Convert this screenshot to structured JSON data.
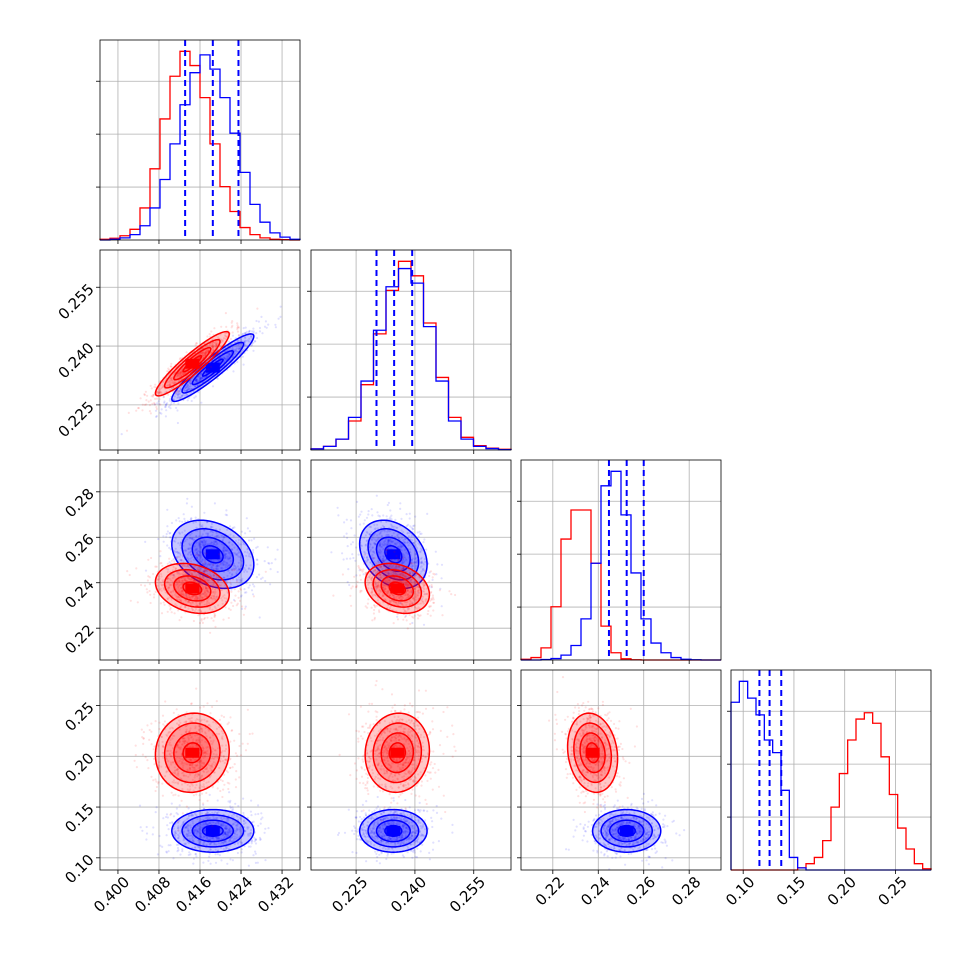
{
  "chart_data": {
    "type": "corner",
    "title": "",
    "grid": true,
    "colors": {
      "series_a": "#ff0000",
      "series_b": "#0000ff"
    },
    "parameters": [
      {
        "index": 0,
        "range": [
          0.3965,
          0.4355
        ],
        "ticks": [
          0.4,
          0.408,
          0.416,
          0.424,
          0.432
        ],
        "tick_labels": [
          "0.400",
          "0.408",
          "0.416",
          "0.424",
          "0.432"
        ]
      },
      {
        "index": 1,
        "range": [
          0.2135,
          0.2645
        ],
        "ticks": [
          0.225,
          0.24,
          0.255
        ],
        "tick_labels": [
          "0.225",
          "0.240",
          "0.255"
        ]
      },
      {
        "index": 2,
        "range": [
          0.206,
          0.294
        ],
        "ticks": [
          0.22,
          0.24,
          0.26,
          0.28
        ],
        "tick_labels": [
          "0.22",
          "0.24",
          "0.26",
          "0.28"
        ]
      },
      {
        "index": 3,
        "range": [
          0.088,
          0.285
        ],
        "ticks": [
          0.1,
          0.15,
          0.2,
          0.25
        ],
        "tick_labels": [
          "0.10",
          "0.15",
          "0.20",
          "0.25"
        ]
      }
    ],
    "series": [
      {
        "color": "#ff0000",
        "means": [
          0.4145,
          0.2355,
          0.2375,
          0.2035
        ],
        "stds": [
          0.0036,
          0.0041,
          0.0055,
          0.0195
        ],
        "histograms": [
          {
            "edges_from": 0.3965,
            "edges_to": 0.4355,
            "values": [
              0.2,
              0.5,
              1.2,
              3,
              9,
              20,
              34,
              46,
              53,
              49,
              40,
              27,
              15,
              8,
              3.5,
              1.5,
              0.6,
              0.2,
              0.1,
              0
            ]
          },
          {
            "edges_from": 0.2135,
            "edges_to": 0.2645,
            "values": [
              0.3,
              1,
              3,
              8,
              18,
              32,
              44,
              52,
              48,
              35,
              20,
              9,
              3.5,
              1.2,
              0.5,
              0.2
            ]
          },
          {
            "edges_from": 0.206,
            "edges_to": 0.294,
            "values": [
              0.3,
              1,
              5,
              22,
              50,
              62,
              62,
              40,
              14,
              3,
              0.5,
              0.1,
              0,
              0,
              0,
              0,
              0,
              0,
              0,
              0
            ]
          },
          {
            "edges_from": 0.088,
            "edges_to": 0.285,
            "values": [
              0,
              0,
              0,
              0,
              0,
              0,
              0,
              0,
              0.5,
              1.5,
              3,
              7,
              15,
              23,
              31,
              36,
              37.5,
              35,
              27,
              18,
              10,
              5,
              1.5,
              0.3
            ]
          }
        ]
      },
      {
        "color": "#0000ff",
        "means": [
          0.4185,
          0.2345,
          0.2525,
          0.1265
        ],
        "stds": [
          0.004,
          0.0043,
          0.0075,
          0.0105
        ],
        "histograms": [
          {
            "edges_from": 0.3965,
            "edges_to": 0.4355,
            "values": [
              0,
              0.2,
              0.6,
              1.5,
              4,
              9,
              17,
              27,
              38,
              47,
              52,
              48,
              40,
              30,
              19,
              10,
              5,
              2,
              0.8,
              0.2
            ]
          },
          {
            "edges_from": 0.2135,
            "edges_to": 0.2645,
            "values": [
              0.3,
              1,
              3,
              9,
              19,
              33,
              45,
              50,
              46,
              34,
              19,
              8,
              3,
              1,
              0.4,
              0.1
            ]
          },
          {
            "edges_from": 0.206,
            "edges_to": 0.294,
            "values": [
              0,
              0,
              0.2,
              0.6,
              2,
              6,
              17,
              40,
              72,
              78,
              60,
              36,
              17,
              7,
              3,
              1,
              0.3,
              0.1,
              0,
              0
            ]
          },
          {
            "edges_from": 0.088,
            "edges_to": 0.285,
            "values": [
              40,
              45,
              41,
              37,
              31,
              28,
              19,
              3,
              0.5,
              0,
              0,
              0,
              0,
              0,
              0,
              0,
              0,
              0,
              0,
              0,
              0,
              0,
              0,
              0
            ]
          }
        ]
      }
    ],
    "quantile_lines": {
      "color": "#0000ff",
      "style": "dashed",
      "values": [
        [
          0.4131,
          0.4185,
          0.4235
        ],
        [
          0.2302,
          0.2347,
          0.2393
        ],
        [
          0.2447,
          0.2525,
          0.26
        ],
        [
          0.116,
          0.126,
          0.1375
        ]
      ]
    },
    "covariances": [
      {
        "pair": [
          1,
          0
        ],
        "red_corr": 0.92,
        "blue_corr": 0.93
      },
      {
        "pair": [
          2,
          0
        ],
        "red_corr": -0.25,
        "blue_corr": -0.3
      },
      {
        "pair": [
          2,
          1
        ],
        "red_corr": -0.25,
        "blue_corr": -0.3
      },
      {
        "pair": [
          3,
          0
        ],
        "red_corr": 0.05,
        "blue_corr": 0.0
      },
      {
        "pair": [
          3,
          1
        ],
        "red_corr": 0.05,
        "blue_corr": 0.0
      },
      {
        "pair": [
          3,
          2
        ],
        "red_corr": -0.15,
        "blue_corr": 0.0
      }
    ],
    "contour_levels_sigma": [
      0.5,
      1.0,
      1.5,
      2.0
    ]
  }
}
